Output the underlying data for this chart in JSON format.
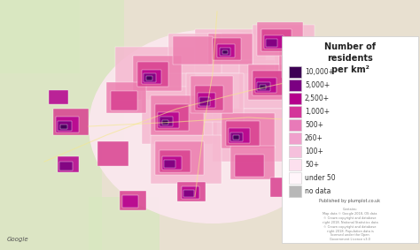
{
  "title": "Number of\nresidents\nper km²",
  "legend_items": [
    {
      "label": "10,000+",
      "color": "#3d0054"
    },
    {
      "label": "5,000+",
      "color": "#7b0082"
    },
    {
      "label": "2,500+",
      "color": "#b5008c"
    },
    {
      "label": "1,000+",
      "color": "#d4359a"
    },
    {
      "label": "500+",
      "color": "#e87ab8"
    },
    {
      "label": "260+",
      "color": "#f0a0cc"
    },
    {
      "label": "100+",
      "color": "#f5c0dc"
    },
    {
      "label": "50+",
      "color": "#fce0ee"
    },
    {
      "label": "under 50",
      "color": "#fff5fa"
    },
    {
      "label": "no data",
      "color": "#b8b8b8"
    }
  ],
  "legend_bg": "#ffffff",
  "published_text": "Published by plumplot.co.uk",
  "small_text": "Contains:\nMap data © Google 2018, OS data\n© Crown copyright and database\nright 2018. National Statistics data\n© Crown copyright and database\nright 2018. Population data is\nlicensed under the Open\nGovernment Licence v3.0",
  "figsize": [
    4.74,
    2.83
  ],
  "dpi": 100,
  "map_colors": {
    "light_pink": "#fce8f0",
    "pink": "#f5b8d0",
    "med_pink": "#ec80b0",
    "hot_pink": "#d84090",
    "magenta": "#b50090",
    "dark_magenta": "#7a0080",
    "deep_purple": "#3c0054",
    "white": "#ffffff",
    "light_green": "#d8e8c0",
    "tan": "#e8dcc8",
    "road_yellow": "#f5e88c",
    "grey": "#b0b0b0"
  }
}
